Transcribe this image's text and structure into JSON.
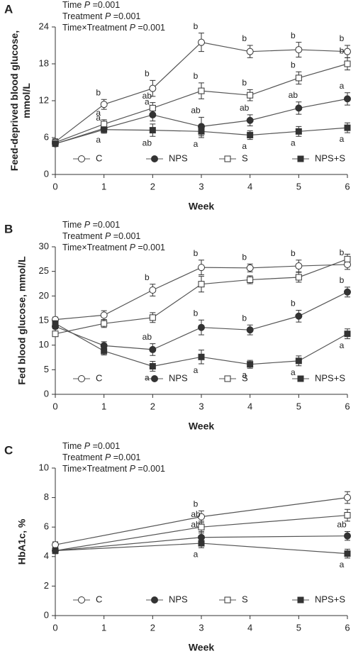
{
  "chart_data": [
    {
      "type": "line",
      "panel": "A",
      "stats": [
        [
          "Time ",
          "P",
          " =0.001"
        ],
        [
          "Treatment ",
          "P",
          " =0.001"
        ],
        [
          "Time×Treatment ",
          "P",
          " =0.001"
        ]
      ],
      "ylabel": [
        "Feed-deprived blood glucose,",
        "mmol/L"
      ],
      "xlabel": "Week",
      "x": [
        0,
        1,
        2,
        3,
        4,
        5,
        6
      ],
      "xlim": [
        0,
        6
      ],
      "xticks": [
        0,
        1,
        2,
        3,
        4,
        5,
        6
      ],
      "ylim": [
        0,
        24
      ],
      "yticks": [
        0,
        6,
        12,
        18,
        24
      ],
      "series": [
        {
          "name": "C",
          "marker": "circle",
          "fill": "#ffffff",
          "color": "#555555",
          "values": [
            5.3,
            11.4,
            14.0,
            21.5,
            20.0,
            20.3,
            20.0
          ],
          "errors": [
            0.5,
            0.8,
            1.3,
            1.5,
            1.0,
            1.2,
            1.0
          ],
          "letters": [
            null,
            "b",
            "b",
            "b",
            "b",
            "b",
            "b"
          ]
        },
        {
          "name": "NPS",
          "marker": "circle",
          "fill": "#333333",
          "color": "#555555",
          "values": [
            5.0,
            7.5,
            9.7,
            7.8,
            8.8,
            10.8,
            12.3
          ],
          "errors": [
            0.4,
            0.6,
            1.0,
            1.5,
            0.9,
            1.0,
            1.0
          ],
          "letters": [
            null,
            "a",
            "a",
            "ab",
            "ab",
            "ab",
            "a"
          ]
        },
        {
          "name": "S",
          "marker": "square",
          "fill": "#ffffff",
          "color": "#555555",
          "values": [
            5.2,
            8.2,
            10.8,
            13.6,
            12.9,
            15.7,
            18.0
          ],
          "errors": [
            0.5,
            0.7,
            0.9,
            1.3,
            0.9,
            1.0,
            1.0
          ],
          "letters": [
            null,
            "a",
            "ab",
            "b",
            "b",
            "b",
            "b"
          ]
        },
        {
          "name": "NPS+S",
          "marker": "square",
          "fill": "#333333",
          "color": "#555555",
          "values": [
            5.0,
            7.3,
            7.2,
            7.0,
            6.4,
            7.0,
            7.6
          ],
          "errors": [
            0.4,
            0.6,
            1.0,
            1.0,
            0.7,
            0.8,
            0.8
          ],
          "letters": [
            null,
            "a",
            "ab",
            "a",
            "a",
            "a",
            "a"
          ]
        }
      ]
    },
    {
      "type": "line",
      "panel": "B",
      "stats": [
        [
          "Time ",
          "P",
          " =0.001"
        ],
        [
          "Treatment ",
          "P",
          " =0.001"
        ],
        [
          "Time×Treatment ",
          "P",
          " =0.001"
        ]
      ],
      "ylabel": [
        "Fed blood glucose, mmol/L"
      ],
      "xlabel": "Week",
      "x": [
        0,
        1,
        2,
        3,
        4,
        5,
        6
      ],
      "xlim": [
        0,
        6
      ],
      "xticks": [
        0,
        1,
        2,
        3,
        4,
        5,
        6
      ],
      "ylim": [
        0,
        30
      ],
      "yticks": [
        0,
        5,
        10,
        15,
        20,
        25,
        30
      ],
      "series": [
        {
          "name": "C",
          "marker": "circle",
          "fill": "#ffffff",
          "color": "#555555",
          "values": [
            15.2,
            16.1,
            21.2,
            25.8,
            25.7,
            26.1,
            26.4
          ],
          "errors": [
            0.5,
            0.9,
            1.2,
            1.5,
            0.8,
            1.2,
            1.0
          ],
          "letters": [
            null,
            null,
            "b",
            "b",
            "b",
            "b",
            "b"
          ]
        },
        {
          "name": "NPS",
          "marker": "circle",
          "fill": "#333333",
          "color": "#555555",
          "values": [
            13.8,
            9.9,
            9.1,
            13.6,
            13.1,
            15.9,
            20.8
          ],
          "errors": [
            0.5,
            0.8,
            1.2,
            1.5,
            1.0,
            1.2,
            1.0
          ],
          "letters": [
            null,
            null,
            "ab",
            "b",
            "b",
            "b",
            "b"
          ]
        },
        {
          "name": "S",
          "marker": "square",
          "fill": "#ffffff",
          "color": "#555555",
          "values": [
            12.3,
            14.4,
            15.6,
            22.4,
            23.3,
            23.8,
            27.5
          ],
          "errors": [
            0.5,
            0.8,
            1.0,
            1.6,
            0.8,
            1.0,
            1.0
          ],
          "letters": [
            null,
            null,
            null,
            null,
            null,
            null,
            null
          ]
        },
        {
          "name": "NPS+S",
          "marker": "square",
          "fill": "#333333",
          "color": "#555555",
          "values": [
            14.4,
            8.8,
            5.7,
            7.6,
            6.1,
            6.8,
            12.3
          ],
          "errors": [
            0.5,
            0.8,
            1.0,
            1.4,
            0.8,
            1.0,
            1.0
          ],
          "letters": [
            null,
            null,
            "a",
            "a",
            "a",
            "a",
            "a"
          ]
        }
      ]
    },
    {
      "type": "line",
      "panel": "C",
      "stats": [
        [
          "Time ",
          "P",
          " =0.001"
        ],
        [
          "Treatment ",
          "P",
          " =0.001"
        ],
        [
          "Time×Treatment ",
          "P",
          " =0.001"
        ]
      ],
      "ylabel": [
        "HbA1c, %"
      ],
      "xlabel": "Week",
      "x": [
        0,
        3,
        6
      ],
      "xlim": [
        0,
        6
      ],
      "xticks": [
        0,
        1,
        2,
        3,
        4,
        5,
        6
      ],
      "ylim": [
        0,
        10
      ],
      "yticks": [
        0,
        2,
        4,
        6,
        8,
        10
      ],
      "series": [
        {
          "name": "C",
          "marker": "circle",
          "fill": "#ffffff",
          "color": "#555555",
          "values": [
            4.8,
            6.7,
            8.0
          ],
          "errors": [
            0.2,
            0.4,
            0.4
          ],
          "letters": [
            null,
            "b",
            null
          ]
        },
        {
          "name": "NPS",
          "marker": "circle",
          "fill": "#333333",
          "color": "#555555",
          "values": [
            4.4,
            5.3,
            5.4
          ],
          "errors": [
            0.2,
            0.4,
            0.3
          ],
          "letters": [
            null,
            "ab",
            "ab"
          ]
        },
        {
          "name": "S",
          "marker": "square",
          "fill": "#ffffff",
          "color": "#555555",
          "values": [
            4.4,
            6.0,
            6.8
          ],
          "errors": [
            0.2,
            0.4,
            0.4
          ],
          "letters": [
            null,
            "ab",
            null
          ]
        },
        {
          "name": "NPS+S",
          "marker": "square",
          "fill": "#333333",
          "color": "#555555",
          "values": [
            4.4,
            4.9,
            4.2
          ],
          "errors": [
            0.2,
            0.3,
            0.3
          ],
          "letters": [
            null,
            "a",
            "a"
          ]
        }
      ]
    }
  ]
}
